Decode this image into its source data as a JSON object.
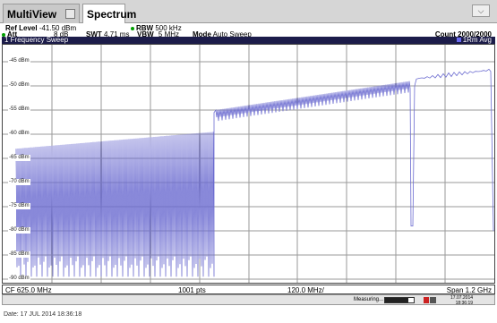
{
  "tabs": [
    {
      "label": "MultiView"
    },
    {
      "label": "Spectrum"
    }
  ],
  "tab_menu_icon": "chevron-down-icon",
  "settings": {
    "ref_level_label": "Ref Level",
    "ref_level_value": "-41.50 dBm",
    "att_label": "Att",
    "att_value": "8 dB",
    "swt_label": "SWT",
    "swt_value": "4.71 ms",
    "rbw_label": "RBW",
    "rbw_value": "500 kHz",
    "vbw_label": "VBW",
    "vbw_value": "5 MHz",
    "mode_label": "Mode",
    "mode_value": "Auto Sweep",
    "count_label": "Count",
    "count_value": "2000/2000"
  },
  "sweep_title": "1 Frequency Sweep",
  "trace_mode": "1Rm Avg",
  "ref_lines": [
    "-45 dBm",
    "-50 dBm",
    "-55 dBm",
    "-60 dBm",
    "-65 dBm",
    "-70 dBm",
    "-75 dBm",
    "-80 dBm",
    "-85 dBm",
    "-90 dBm"
  ],
  "axis": {
    "cf": "CF 625.0 MHz",
    "pts": "1001 pts",
    "div": "120.0 MHz/",
    "span": "Span 1.2 GHz"
  },
  "status": {
    "measuring": "Measuring...",
    "progress": 0.82,
    "date": "17.07.2014",
    "time": "18:36:19"
  },
  "footer": "Date: 17 JUL 2014  18:36:18",
  "colors": {
    "trace": "#6b6bd0",
    "header_bar": "#1c1c4a",
    "grid": "#9a9a9a"
  }
}
